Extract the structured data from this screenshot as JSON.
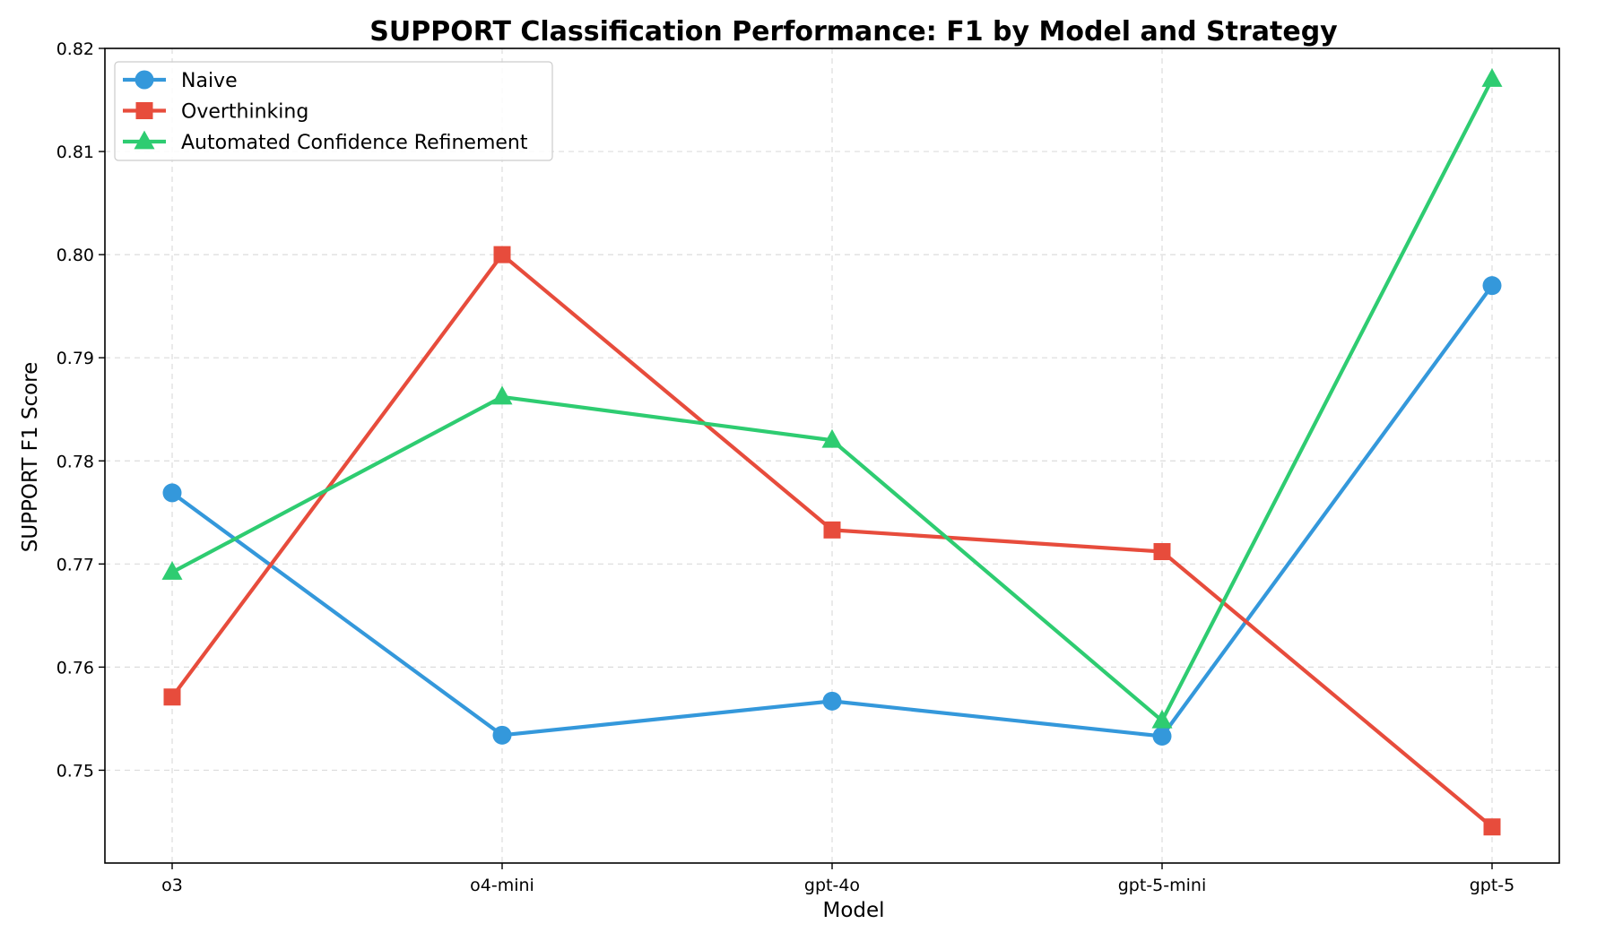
{
  "chart_data": {
    "type": "line",
    "title": "SUPPORT Classification Performance: F1 by Model and Strategy",
    "xlabel": "Model",
    "ylabel": "SUPPORT F1 Score",
    "categories": [
      "o3",
      "o4-mini",
      "gpt-4o",
      "gpt-5-mini",
      "gpt-5"
    ],
    "ylim": [
      0.741,
      0.82
    ],
    "yticks": [
      0.75,
      0.76,
      0.77,
      0.78,
      0.79,
      0.8,
      0.81,
      0.82
    ],
    "ytick_labels": [
      "0.75",
      "0.76",
      "0.77",
      "0.78",
      "0.79",
      "0.80",
      "0.81",
      "0.82"
    ],
    "grid": true,
    "legend_position": "top-left",
    "series": [
      {
        "name": "Naive",
        "color": "#3498db",
        "marker": "circle",
        "values": [
          0.7769,
          0.7534,
          0.7567,
          0.7533,
          0.797
        ]
      },
      {
        "name": "Overthinking",
        "color": "#e74c3c",
        "marker": "square",
        "values": [
          0.7571,
          0.8,
          0.7733,
          0.7712,
          0.7445
        ]
      },
      {
        "name": "Automated Confidence Refinement",
        "color": "#2ecc71",
        "marker": "triangle",
        "values": [
          0.7692,
          0.7862,
          0.782,
          0.7548,
          0.817
        ]
      }
    ]
  }
}
